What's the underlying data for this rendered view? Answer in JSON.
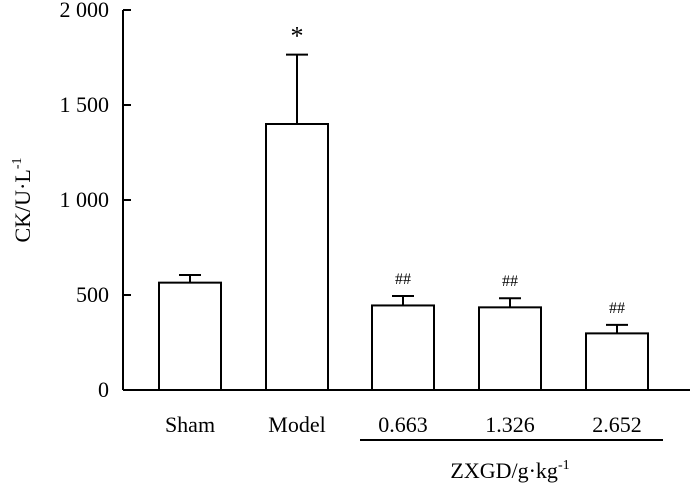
{
  "chart_data": {
    "type": "bar",
    "categories": [
      "Sham",
      "Model",
      "0.663",
      "1.326",
      "2.652"
    ],
    "values": [
      565,
      1400,
      445,
      435,
      298
    ],
    "errors": [
      40,
      365,
      50,
      48,
      45
    ],
    "annotations": [
      "",
      "*",
      "##",
      "##",
      "##"
    ],
    "ylabel_main": "CK/U·L",
    "ylabel_sup": "-1",
    "xlabel_main": "ZXGD/g·kg",
    "xlabel_sup": "-1",
    "ylim": [
      0,
      2000
    ],
    "yticks": [
      0,
      500,
      1000,
      1500,
      2000
    ],
    "ytick_labels": [
      "0",
      "500",
      "1 000",
      "1 500",
      "2 000"
    ],
    "grid": false,
    "bar_fill": "#ffffff",
    "bar_stroke": "#000000"
  }
}
